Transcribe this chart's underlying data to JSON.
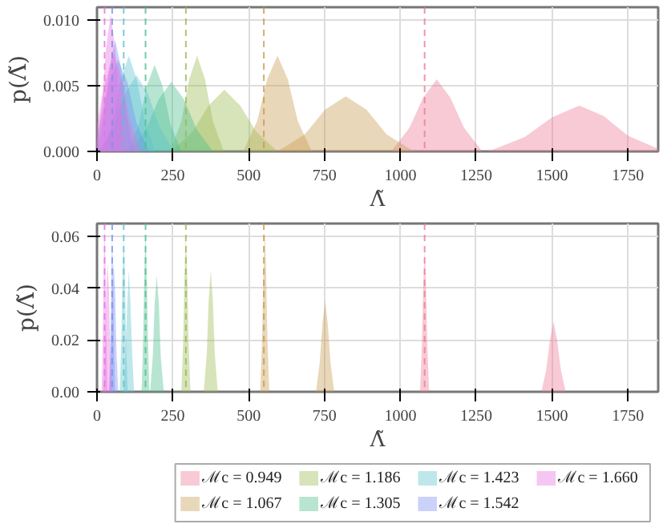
{
  "chart_data": [
    {
      "type": "area",
      "xlabel": "Λ̃",
      "ylabel": "p(Λ̃)",
      "xlim": [
        0,
        1850
      ],
      "ylim": [
        0,
        0.011
      ],
      "xticks": [
        0,
        250,
        500,
        750,
        1000,
        1250,
        1500,
        1750
      ],
      "yticks": [
        {
          "value": 0,
          "label": "0.000"
        },
        {
          "value": 0.005,
          "label": "0.005"
        },
        {
          "value": 0.01,
          "label": "0.010"
        }
      ],
      "grid": true,
      "legend": false,
      "ref_lines": [
        {
          "axis": "x",
          "value": 1080,
          "color": "#ee7a96",
          "line_style": "dashed"
        },
        {
          "axis": "x",
          "value": 550,
          "color": "#c89a50",
          "line_style": "dashed"
        },
        {
          "axis": "x",
          "value": 293,
          "color": "#9ab850",
          "line_style": "dashed"
        },
        {
          "axis": "x",
          "value": 160,
          "color": "#4cbf8e",
          "line_style": "dashed"
        },
        {
          "axis": "x",
          "value": 88,
          "color": "#5cc2cc",
          "line_style": "dashed"
        },
        {
          "axis": "x",
          "value": 50,
          "color": "#7b8ef0",
          "line_style": "dashed"
        },
        {
          "axis": "x",
          "value": 25,
          "color": "#e870e0",
          "line_style": "dashed"
        }
      ],
      "series": [
        {
          "color": "#ee7a96",
          "x": [
            970,
            1030,
            1075,
            1120,
            1165,
            1210,
            1270
          ],
          "values": [
            0,
            0.0018,
            0.0041,
            0.0055,
            0.0041,
            0.0018,
            0
          ]
        },
        {
          "color": "#ee7a97",
          "x": [
            1290,
            1410,
            1500,
            1590,
            1670,
            1750,
            1850
          ],
          "values": [
            0,
            0.0011,
            0.0026,
            0.0035,
            0.0027,
            0.0012,
            0.0002
          ]
        },
        {
          "color": "#c89a50",
          "x": [
            482,
            528,
            561,
            595,
            629,
            662,
            708
          ],
          "values": [
            0,
            0.0023,
            0.0055,
            0.0073,
            0.0055,
            0.0023,
            0
          ]
        },
        {
          "color": "#c89a51",
          "x": [
            595,
            685,
            752,
            820,
            888,
            955,
            1045
          ],
          "values": [
            0,
            0.0013,
            0.0032,
            0.0042,
            0.0032,
            0.0013,
            0
          ]
        },
        {
          "color": "#9ab850",
          "x": [
            242,
            278,
            304,
            330,
            356,
            382,
            418
          ],
          "values": [
            0,
            0.0023,
            0.0055,
            0.0073,
            0.0055,
            0.0023,
            0
          ]
        },
        {
          "color": "#9ab851",
          "x": [
            245,
            315,
            368,
            420,
            472,
            525,
            595
          ],
          "values": [
            0,
            0.0015,
            0.0035,
            0.0047,
            0.0035,
            0.0015,
            0
          ]
        },
        {
          "color": "#4cbf8e",
          "x": [
            102,
            138,
            164,
            190,
            216,
            242,
            278
          ],
          "values": [
            0,
            0.0021,
            0.005,
            0.0066,
            0.005,
            0.0021,
            0
          ]
        },
        {
          "color": "#4cbf8f",
          "x": [
            108,
            162,
            204,
            245,
            286,
            328,
            382
          ],
          "values": [
            0,
            0.0017,
            0.004,
            0.0053,
            0.004,
            0.0017,
            0
          ]
        },
        {
          "color": "#5cc2cc",
          "x": [
            18,
            52,
            79,
            105,
            131,
            158,
            192
          ],
          "values": [
            0,
            0.0023,
            0.0055,
            0.0073,
            0.0055,
            0.0023,
            0
          ]
        },
        {
          "color": "#5cc2cd",
          "x": [
            5,
            55,
            92,
            130,
            168,
            205,
            255
          ],
          "values": [
            0,
            0.0019,
            0.0044,
            0.0058,
            0.0044,
            0.0019,
            0
          ]
        },
        {
          "color": "#7b8ef0",
          "x": [
            0,
            22,
            41,
            60,
            79,
            98,
            122
          ],
          "values": [
            0,
            0.0027,
            0.0064,
            0.0085,
            0.0064,
            0.0027,
            0
          ]
        },
        {
          "color": "#7b8ef1",
          "x": [
            0,
            10,
            40,
            70,
            100,
            130,
            170
          ],
          "values": [
            0.0008,
            0.0022,
            0.0053,
            0.007,
            0.0053,
            0.0022,
            0
          ]
        },
        {
          "color": "#e870e0",
          "x": [
            0,
            15,
            30,
            45,
            60,
            75,
            95
          ],
          "values": [
            0.0008,
            0.0034,
            0.0079,
            0.0105,
            0.0079,
            0.0034,
            0
          ]
        },
        {
          "color": "#e870e1",
          "x": [
            0,
            15,
            30,
            55,
            81,
            108,
            143
          ],
          "values": [
            0.002,
            0.004,
            0.0055,
            0.0075,
            0.0056,
            0.0024,
            0
          ]
        }
      ]
    },
    {
      "type": "area",
      "xlabel": "Λ̃",
      "ylabel": "p(Λ̃)",
      "xlim": [
        0,
        1850
      ],
      "ylim": [
        0,
        0.065
      ],
      "xticks": [
        0,
        250,
        500,
        750,
        1000,
        1250,
        1500,
        1750
      ],
      "yticks": [
        {
          "value": 0,
          "label": "0.00"
        },
        {
          "value": 0.02,
          "label": "0.02"
        },
        {
          "value": 0.04,
          "label": "0.04"
        },
        {
          "value": 0.06,
          "label": "0.06"
        }
      ],
      "grid": true,
      "legend": "bottom",
      "ref_lines": [
        {
          "axis": "x",
          "value": 1080,
          "color": "#ee7a96",
          "line_style": "dashed"
        },
        {
          "axis": "x",
          "value": 550,
          "color": "#c89a50",
          "line_style": "dashed"
        },
        {
          "axis": "x",
          "value": 293,
          "color": "#9ab850",
          "line_style": "dashed"
        },
        {
          "axis": "x",
          "value": 160,
          "color": "#4cbf8e",
          "line_style": "dashed"
        },
        {
          "axis": "x",
          "value": 88,
          "color": "#5cc2cc",
          "line_style": "dashed"
        },
        {
          "axis": "x",
          "value": 50,
          "color": "#7b8ef0",
          "line_style": "dashed"
        },
        {
          "axis": "x",
          "value": 25,
          "color": "#e870e0",
          "line_style": "dashed"
        }
      ],
      "series": [
        {
          "name": "ℳc = 0.949",
          "color": "#ee7a96",
          "x": [
            1065,
            1071,
            1075.5,
            1080,
            1084.5,
            1089,
            1095
          ],
          "values": [
            0,
            0.018,
            0.041,
            0.055,
            0.041,
            0.018,
            0
          ]
        },
        {
          "color": "#ee7a97",
          "x": [
            1465,
            1481,
            1493,
            1505,
            1517,
            1529,
            1545
          ],
          "values": [
            0,
            0.0086,
            0.02,
            0.027,
            0.02,
            0.0086,
            0
          ]
        },
        {
          "name": "ℳc = 1.067",
          "color": "#c89a50",
          "x": [
            538,
            544,
            548.5,
            553,
            557.5,
            562,
            568
          ],
          "values": [
            0,
            0.02,
            0.046,
            0.062,
            0.046,
            0.02,
            0
          ]
        },
        {
          "color": "#c89a51",
          "x": [
            722,
            734,
            743,
            752,
            761,
            770,
            782
          ],
          "values": [
            0,
            0.011,
            0.026,
            0.035,
            0.026,
            0.011,
            0
          ]
        },
        {
          "name": "ℳc = 1.186",
          "color": "#9ab850",
          "x": [
            278,
            284,
            288.5,
            293,
            297.5,
            302,
            308
          ],
          "values": [
            0,
            0.019,
            0.045,
            0.06,
            0.045,
            0.019,
            0
          ]
        },
        {
          "color": "#9ab851",
          "x": [
            352,
            362,
            368,
            375,
            382,
            388,
            398
          ],
          "values": [
            0,
            0.015,
            0.035,
            0.047,
            0.035,
            0.015,
            0
          ]
        },
        {
          "name": "ℳc = 1.305",
          "color": "#4cbf8e",
          "x": [
            147,
            152,
            156,
            160,
            164,
            168,
            173
          ],
          "values": [
            0,
            0.02,
            0.046,
            0.062,
            0.046,
            0.02,
            0
          ]
        },
        {
          "color": "#4cbf8f",
          "x": [
            175,
            184,
            190,
            197,
            204,
            210,
            220
          ],
          "values": [
            0,
            0.014,
            0.034,
            0.045,
            0.034,
            0.014,
            0
          ]
        },
        {
          "name": "ℳc = 1.423",
          "color": "#5cc2cc",
          "x": [
            75,
            80,
            84,
            88,
            92,
            96,
            101
          ],
          "values": [
            0,
            0.019,
            0.045,
            0.06,
            0.045,
            0.019,
            0
          ]
        },
        {
          "color": "#5cc2cd",
          "x": [
            88,
            94,
            100,
            105,
            110,
            116,
            122
          ],
          "values": [
            0,
            0.015,
            0.035,
            0.047,
            0.035,
            0.015,
            0
          ]
        },
        {
          "name": "ℳc = 1.542",
          "color": "#7b8ef0",
          "x": [
            40,
            44,
            47,
            50,
            53,
            56,
            60
          ],
          "values": [
            0,
            0.019,
            0.045,
            0.06,
            0.045,
            0.019,
            0
          ]
        },
        {
          "color": "#7b8ef1",
          "x": [
            40,
            46,
            50,
            55,
            60,
            64,
            70
          ],
          "values": [
            0,
            0.016,
            0.038,
            0.05,
            0.038,
            0.016,
            0
          ]
        },
        {
          "name": "ℳc = 1.660",
          "color": "#e870e0",
          "x": [
            15,
            19,
            22,
            25,
            28,
            31,
            35
          ],
          "values": [
            0,
            0.02,
            0.047,
            0.063,
            0.047,
            0.02,
            0
          ]
        },
        {
          "color": "#e870e1",
          "x": [
            20,
            26,
            30.5,
            35,
            39.5,
            44,
            50
          ],
          "values": [
            0,
            0.016,
            0.038,
            0.05,
            0.038,
            0.016,
            0
          ]
        }
      ]
    }
  ]
}
